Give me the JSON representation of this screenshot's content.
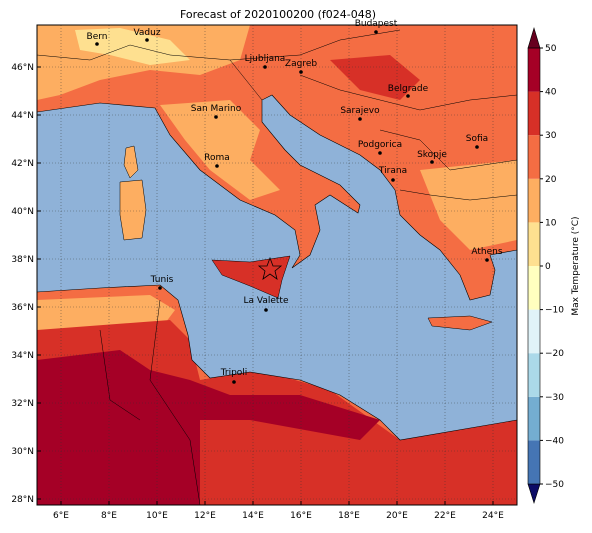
{
  "map": {
    "title": "Forecast of 2020100200 (f024-048)",
    "xlim": [
      5,
      25
    ],
    "ylim": [
      27.75,
      47.75
    ],
    "xticks": [
      {
        "value": 6,
        "label": "6°E"
      },
      {
        "value": 8,
        "label": "8°E"
      },
      {
        "value": 10,
        "label": "10°E"
      },
      {
        "value": 12,
        "label": "12°E"
      },
      {
        "value": 14,
        "label": "14°E"
      },
      {
        "value": 16,
        "label": "16°E"
      },
      {
        "value": 18,
        "label": "18°E"
      },
      {
        "value": 20,
        "label": "20°E"
      },
      {
        "value": 22,
        "label": "22°E"
      },
      {
        "value": 24,
        "label": "24°E"
      }
    ],
    "yticks": [
      {
        "value": 28,
        "label": "28°N"
      },
      {
        "value": 30,
        "label": "30°N"
      },
      {
        "value": 32,
        "label": "32°N"
      },
      {
        "value": 34,
        "label": "34°N"
      },
      {
        "value": 36,
        "label": "36°N"
      },
      {
        "value": 38,
        "label": "38°N"
      },
      {
        "value": 40,
        "label": "40°N"
      },
      {
        "value": 42,
        "label": "42°N"
      },
      {
        "value": 44,
        "label": "44°N"
      },
      {
        "value": 46,
        "label": "46°N"
      }
    ],
    "cities": [
      "Bern",
      "Vaduz",
      "Budapest",
      "Ljubljana",
      "Zagreb",
      "Belgrade",
      "San Marino",
      "Sarajevo",
      "Sofia",
      "Roma",
      "Podgorica",
      "Skopje",
      "Tirana",
      "Athens",
      "Tunis",
      "La Valette",
      "Tripoli"
    ],
    "colorbar": {
      "label": "Max Temperature (°C)",
      "ticks": [
        {
          "value": -50,
          "label": "−50"
        },
        {
          "value": -40,
          "label": "−40"
        },
        {
          "value": -30,
          "label": "−30"
        },
        {
          "value": -20,
          "label": "−20"
        },
        {
          "value": -10,
          "label": "−10"
        },
        0,
        10,
        20,
        30,
        40,
        50
      ],
      "colors": [
        "#313695",
        "#4575b4",
        "#74add1",
        "#abd9e9",
        "#e0f3f8",
        "#ffffbf",
        "#fee090",
        "#fdae61",
        "#f46d43",
        "#d73027",
        "#a50026"
      ],
      "under": "#0c0c66",
      "over": "#67001f"
    }
  }
}
